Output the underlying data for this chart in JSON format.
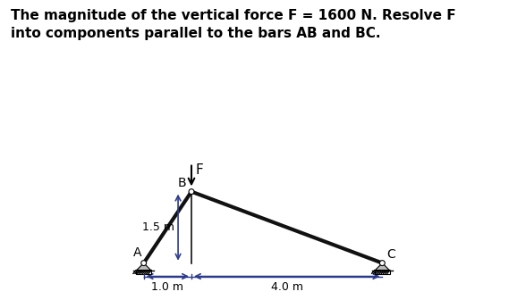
{
  "title_line1": "The magnitude of the vertical force F = 1600 N. Resolve F",
  "title_line2": "into components parallel to the bars AB and BC.",
  "bg_color": "#ffffff",
  "A": [
    1.0,
    0.0
  ],
  "B": [
    2.0,
    1.5
  ],
  "C": [
    6.0,
    0.0
  ],
  "bar_color": "#111111",
  "bar_linewidth": 3.0,
  "dim_arrow_color": "#2b3a8c",
  "label_F": "F",
  "label_A": "A",
  "label_B": "B",
  "label_C": "C",
  "dim_15_label": "1.5 m",
  "dim_10_label": "1.0 m",
  "dim_40_label": "4.0 m",
  "text_color": "#000000",
  "fig_width": 5.88,
  "fig_height": 3.36,
  "dpi": 100
}
